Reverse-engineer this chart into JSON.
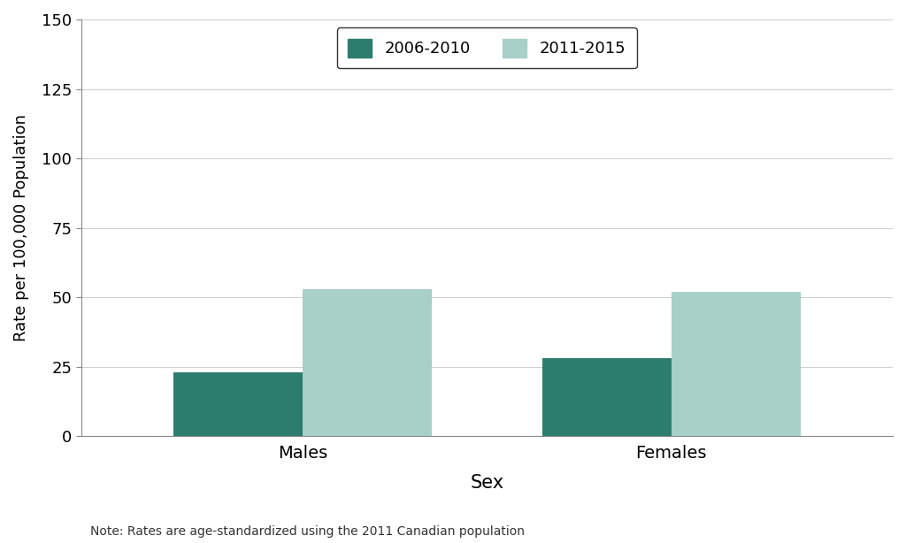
{
  "categories": [
    "Males",
    "Females"
  ],
  "series": {
    "2006-2010": [
      23,
      28
    ],
    "2011-2015": [
      53,
      52
    ]
  },
  "colors": {
    "2006-2010": "#2d7d6e",
    "2011-2015": "#a8cfc8"
  },
  "ylabel": "Rate per 100,000 Population",
  "xlabel": "Sex",
  "ylim": [
    0,
    150
  ],
  "yticks": [
    0,
    25,
    50,
    75,
    100,
    125,
    150
  ],
  "note": "Note: Rates are age-standardized using the 2011 Canadian population",
  "legend_labels": [
    "2006-2010",
    "2011-2015"
  ],
  "bar_width": 0.35,
  "background_color": "#ffffff",
  "grid_color": "#d0d0d0"
}
